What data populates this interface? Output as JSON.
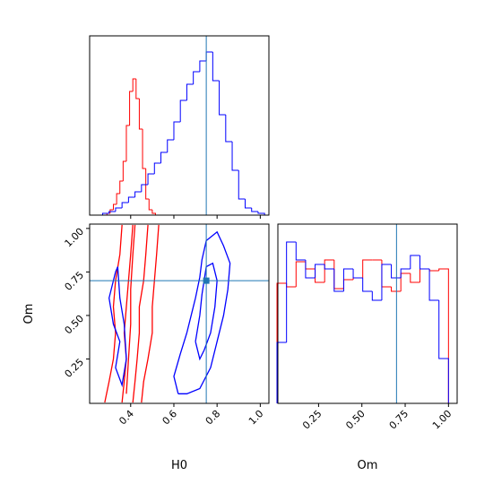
{
  "chart_data": [
    {
      "type": "histogram",
      "xlim": [
        0.21,
        1.04
      ],
      "ylim": [
        0,
        200
      ],
      "xticks": [
        0.4,
        0.6,
        0.8,
        {
          "value": 1,
          "label": "1.0"
        }
      ],
      "xtick_labels": false,
      "truth": 0.75,
      "truth_color": "#1f77b4",
      "series": [
        {
          "color": "#ff0000",
          "bins": [
            0.29,
            0.305,
            0.32,
            0.335,
            0.35,
            0.365,
            0.38,
            0.395,
            0.41,
            0.425,
            0.44,
            0.455,
            0.47,
            0.485,
            0.5,
            0.515
          ],
          "values": [
            2,
            6,
            12,
            24,
            38,
            60,
            100,
            138,
            152,
            130,
            96,
            52,
            18,
            6,
            2
          ]
        },
        {
          "color": "#0000ff",
          "bins": [
            0.27,
            0.3,
            0.33,
            0.36,
            0.39,
            0.42,
            0.45,
            0.48,
            0.51,
            0.54,
            0.57,
            0.6,
            0.63,
            0.66,
            0.69,
            0.72,
            0.75,
            0.78,
            0.81,
            0.84,
            0.87,
            0.9,
            0.93,
            0.96,
            0.99,
            1.02
          ],
          "values": [
            2,
            4,
            8,
            14,
            20,
            26,
            34,
            46,
            58,
            70,
            84,
            104,
            128,
            146,
            160,
            172,
            182,
            150,
            112,
            82,
            50,
            18,
            8,
            4,
            2
          ]
        }
      ]
    },
    {
      "type": "contour",
      "xlabel": "H0",
      "ylabel": "Om",
      "xlim": [
        0.21,
        1.04
      ],
      "ylim": [
        -0.005,
        1.025
      ],
      "xticks": [
        0.4,
        0.6,
        0.8,
        {
          "value": 1,
          "label": "1.0"
        }
      ],
      "yticks": [
        0.25,
        {
          "value": 0.5,
          "label": "0.50"
        },
        0.75,
        {
          "value": 1,
          "label": "1.00"
        }
      ],
      "truth_x": 0.75,
      "truth_y": 0.7,
      "truth_color": "#1f77b4",
      "series": [
        {
          "color": "#ff0000",
          "x": [
            0.28,
            0.3,
            0.32,
            0.33,
            0.32,
            0.33,
            0.35,
            0.36
          ],
          "y": [
            0,
            0.12,
            0.25,
            0.4,
            0.55,
            0.7,
            0.85,
            1.02
          ]
        },
        {
          "color": "#ff0000",
          "x": [
            0.36,
            0.37,
            0.38,
            0.37,
            0.38,
            0.39,
            0.4,
            0.41
          ],
          "y": [
            0,
            0.12,
            0.25,
            0.4,
            0.55,
            0.7,
            0.85,
            1.02
          ]
        },
        {
          "color": "#ff0000",
          "x": [
            0.41,
            0.42,
            0.43,
            0.44,
            0.44,
            0.46,
            0.47,
            0.48
          ],
          "y": [
            0,
            0.12,
            0.25,
            0.4,
            0.55,
            0.7,
            0.85,
            1.02
          ]
        },
        {
          "color": "#ff0000",
          "x": [
            0.45,
            0.46,
            0.48,
            0.5,
            0.5,
            0.51,
            0.52,
            0.53
          ],
          "y": [
            0,
            0.12,
            0.25,
            0.4,
            0.55,
            0.7,
            0.85,
            1.02
          ]
        },
        {
          "color": "#ff0000",
          "x": [
            0.38,
            0.39,
            0.4,
            0.4,
            0.41,
            0.42
          ],
          "y": [
            0.05,
            0.25,
            0.45,
            0.65,
            0.85,
            1.02
          ]
        },
        {
          "color": "#0000ff",
          "x": [
            0.62,
            0.6,
            0.63,
            0.66,
            0.68,
            0.7,
            0.72,
            0.73,
            0.75,
            0.8,
            0.83,
            0.86,
            0.85,
            0.83,
            0.8,
            0.77,
            0.72,
            0.66,
            0.62
          ],
          "y": [
            0.05,
            0.15,
            0.28,
            0.4,
            0.5,
            0.6,
            0.72,
            0.82,
            0.93,
            0.98,
            0.9,
            0.8,
            0.65,
            0.5,
            0.35,
            0.2,
            0.08,
            0.05,
            0.05
          ]
        },
        {
          "color": "#0000ff",
          "x": [
            0.7,
            0.72,
            0.73,
            0.75,
            0.78,
            0.8,
            0.79,
            0.77,
            0.74,
            0.72,
            0.7
          ],
          "y": [
            0.35,
            0.5,
            0.62,
            0.78,
            0.8,
            0.7,
            0.55,
            0.4,
            0.3,
            0.25,
            0.35
          ]
        },
        {
          "color": "#0000ff",
          "x": [
            0.33,
            0.3,
            0.32,
            0.35,
            0.33,
            0.36,
            0.38,
            0.37,
            0.35,
            0.34,
            0.33
          ],
          "y": [
            0.75,
            0.6,
            0.45,
            0.35,
            0.2,
            0.1,
            0.25,
            0.45,
            0.6,
            0.78,
            0.75
          ]
        }
      ]
    },
    {
      "type": "histogram",
      "xlabel": "Om",
      "xlim": [
        0.015,
        1.05
      ],
      "ylim": [
        0,
        200
      ],
      "xticks": [
        0.25,
        {
          "value": 0.5,
          "label": "0.50"
        },
        0.75,
        {
          "value": 1,
          "label": "1.00"
        }
      ],
      "xtick_labels": true,
      "truth": 0.7,
      "truth_color": "#1f77b4",
      "series": [
        {
          "color": "#ff0000",
          "bins": [
            0.01,
            0.065,
            0.12,
            0.175,
            0.23,
            0.285,
            0.34,
            0.395,
            0.45,
            0.505,
            0.56,
            0.615,
            0.67,
            0.725,
            0.78,
            0.835,
            0.89,
            0.945,
            1.0
          ],
          "values": [
            134,
            130,
            158,
            150,
            135,
            160,
            128,
            138,
            140,
            160,
            160,
            130,
            125,
            145,
            135,
            150,
            148,
            150
          ]
        },
        {
          "color": "#0000ff",
          "bins": [
            0.01,
            0.065,
            0.12,
            0.175,
            0.23,
            0.285,
            0.34,
            0.395,
            0.45,
            0.505,
            0.56,
            0.615,
            0.67,
            0.725,
            0.78,
            0.835,
            0.89,
            0.945,
            1.0
          ],
          "values": [
            68,
            180,
            160,
            140,
            155,
            150,
            125,
            150,
            140,
            125,
            115,
            155,
            140,
            150,
            165,
            150,
            115,
            50
          ]
        }
      ]
    }
  ]
}
